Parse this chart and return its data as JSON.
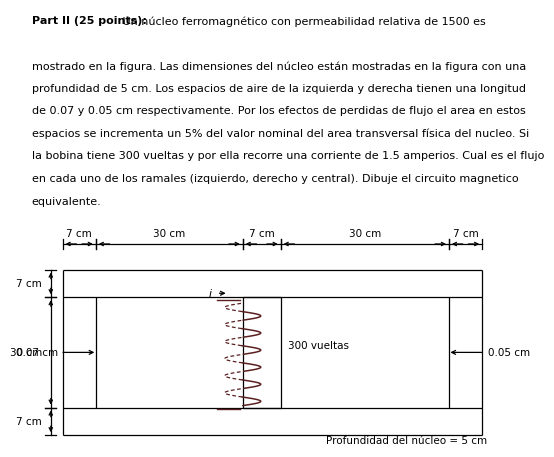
{
  "lines_text": [
    [
      "bold",
      "Part II (25 points):"
    ],
    [
      "normal",
      " Un núcleo ferromagnético con permeabilidad relativa de 1500 es"
    ],
    [
      "normal",
      "mostrado en la figura. Las dimensiones del núcleo están mostradas en la figura con una"
    ],
    [
      "normal",
      "profundidad de 5 cm. Los espacios de aire de la izquierda y derecha tienen una longitud"
    ],
    [
      "normal",
      "de 0.07 y 0.05 cm respectivamente. Por los efectos de perdidas de flujo el area en estos"
    ],
    [
      "normal",
      "espacios se incrementa un 5% del valor nominal del area transversal física del nucleo. Si"
    ],
    [
      "normal",
      "la bobina tiene 300 vueltas y por ella recorre una corriente de 1.5 amperios. Cual es el flujo"
    ],
    [
      "normal",
      "en cada uno de los ramales (izquierdo, derecho y central). Dibuje el circuito magnetico"
    ],
    [
      "normal",
      "equivalente."
    ]
  ],
  "gap_left_label": "0.07 cm",
  "gap_right_label": "0.05 cm",
  "coil_label": "300 vueltas",
  "depth_label": "Profundidad del núcleo = 5 cm",
  "line_color": "#000000",
  "coil_color": "#5a2020",
  "bg_color": "#ffffff",
  "font_size_text": 8.0,
  "font_size_labels": 7.5
}
